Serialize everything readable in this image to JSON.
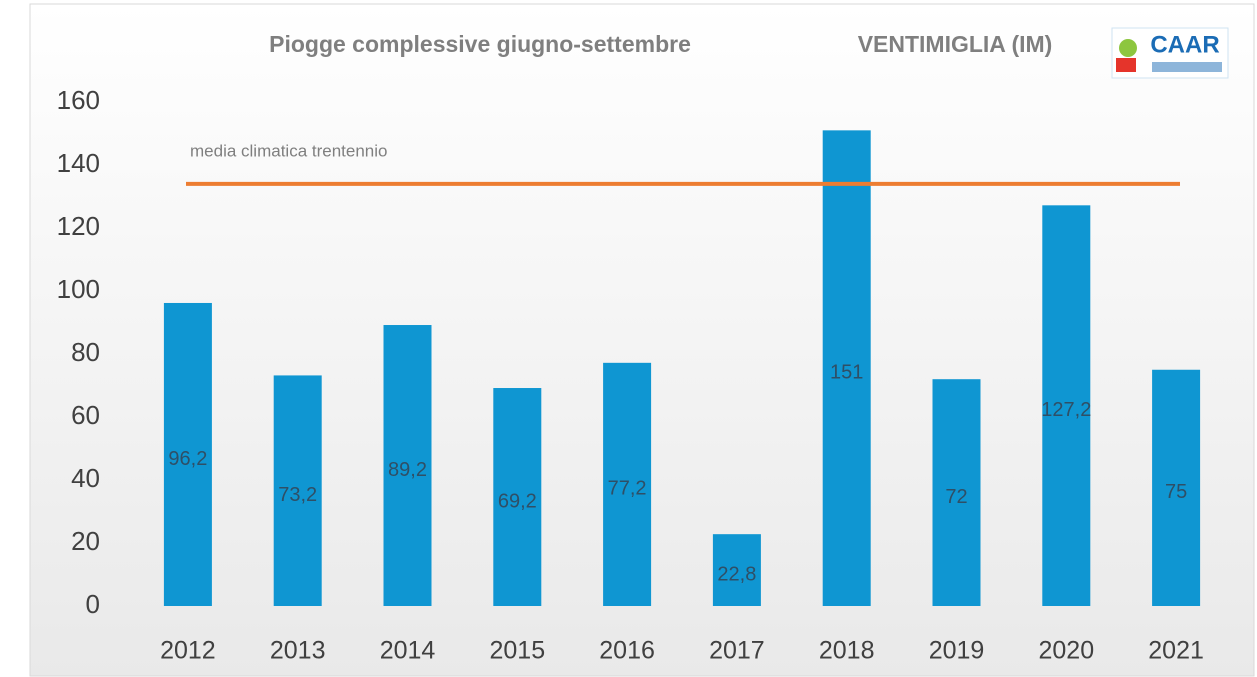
{
  "chart_data": {
    "type": "bar",
    "title": "Piogge complessive giugno-settembre",
    "subtitle": "VENTIMIGLIA (IM)",
    "logo": "CAAR",
    "categories": [
      "2012",
      "2013",
      "2014",
      "2015",
      "2016",
      "2017",
      "2018",
      "2019",
      "2020",
      "2021"
    ],
    "values": [
      96.2,
      73.2,
      89.2,
      69.2,
      77.2,
      22.8,
      151,
      72,
      127.2,
      75
    ],
    "value_labels": [
      "96,2",
      "73,2",
      "89,2",
      "69,2",
      "77,2",
      "22,8",
      "151",
      "72",
      "127,2",
      "75"
    ],
    "color": "#0f96d2",
    "ylim": [
      0,
      160
    ],
    "yticks": [
      0,
      20,
      40,
      60,
      80,
      100,
      120,
      140,
      160
    ],
    "grid": false,
    "reference_line": {
      "value": 134,
      "label": "media climatica trentennio",
      "color": "#ed7d31"
    }
  }
}
